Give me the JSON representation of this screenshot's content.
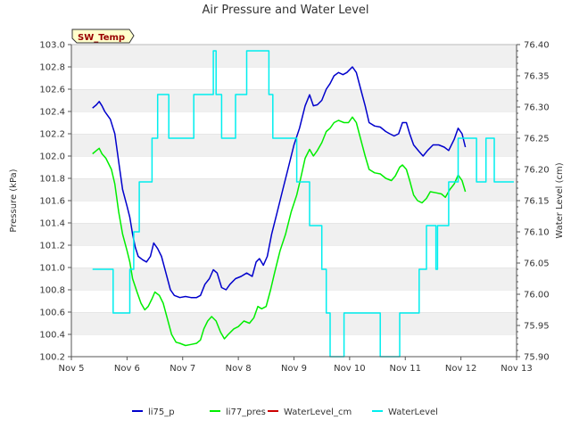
{
  "chart_data": {
    "type": "line",
    "title": "Air Pressure and Water Level",
    "xlabel": "",
    "ylabel": "Pressure (kPa)",
    "y2label": "Water Level (cm)",
    "x_ticks": [
      "Nov 5",
      "Nov 6",
      "Nov 7",
      "Nov 8",
      "Nov 9",
      "Nov 10",
      "Nov 11",
      "Nov 12",
      "Nov 13"
    ],
    "xlim": [
      5,
      13
    ],
    "ylim": [
      100.2,
      103.0
    ],
    "y_ticks": [
      100.2,
      100.4,
      100.6,
      100.8,
      101.0,
      101.2,
      101.4,
      101.6,
      101.8,
      102.0,
      102.2,
      102.4,
      102.6,
      102.8,
      103.0
    ],
    "y2lim": [
      75.9,
      76.4
    ],
    "y2_ticks": [
      75.9,
      75.95,
      76.0,
      76.05,
      76.1,
      76.15,
      76.2,
      76.25,
      76.3,
      76.35,
      76.4
    ],
    "grid": "horizontal bands",
    "legend_position": "bottom",
    "annotation": "SW_Temp",
    "series": [
      {
        "name": "li75_p",
        "color": "#0000cc",
        "axis": "left",
        "points": [
          [
            5.38,
            102.43
          ],
          [
            5.45,
            102.46
          ],
          [
            5.5,
            102.49
          ],
          [
            5.55,
            102.45
          ],
          [
            5.6,
            102.4
          ],
          [
            5.7,
            102.33
          ],
          [
            5.78,
            102.2
          ],
          [
            5.85,
            101.95
          ],
          [
            5.92,
            101.7
          ],
          [
            6.0,
            101.55
          ],
          [
            6.05,
            101.45
          ],
          [
            6.1,
            101.3
          ],
          [
            6.15,
            101.18
          ],
          [
            6.2,
            101.1
          ],
          [
            6.28,
            101.07
          ],
          [
            6.35,
            101.05
          ],
          [
            6.42,
            101.1
          ],
          [
            6.48,
            101.22
          ],
          [
            6.55,
            101.17
          ],
          [
            6.62,
            101.1
          ],
          [
            6.7,
            100.95
          ],
          [
            6.78,
            100.8
          ],
          [
            6.85,
            100.75
          ],
          [
            6.95,
            100.73
          ],
          [
            7.05,
            100.74
          ],
          [
            7.15,
            100.73
          ],
          [
            7.25,
            100.73
          ],
          [
            7.32,
            100.75
          ],
          [
            7.4,
            100.85
          ],
          [
            7.48,
            100.9
          ],
          [
            7.55,
            100.98
          ],
          [
            7.62,
            100.95
          ],
          [
            7.7,
            100.82
          ],
          [
            7.78,
            100.8
          ],
          [
            7.85,
            100.85
          ],
          [
            7.95,
            100.9
          ],
          [
            8.05,
            100.92
          ],
          [
            8.15,
            100.95
          ],
          [
            8.25,
            100.92
          ],
          [
            8.32,
            101.05
          ],
          [
            8.38,
            101.08
          ],
          [
            8.45,
            101.02
          ],
          [
            8.52,
            101.1
          ],
          [
            8.6,
            101.3
          ],
          [
            8.7,
            101.5
          ],
          [
            8.8,
            101.7
          ],
          [
            8.9,
            101.9
          ],
          [
            9.0,
            102.1
          ],
          [
            9.1,
            102.25
          ],
          [
            9.2,
            102.45
          ],
          [
            9.28,
            102.55
          ],
          [
            9.35,
            102.45
          ],
          [
            9.42,
            102.46
          ],
          [
            9.5,
            102.5
          ],
          [
            9.58,
            102.6
          ],
          [
            9.65,
            102.65
          ],
          [
            9.72,
            102.72
          ],
          [
            9.8,
            102.75
          ],
          [
            9.88,
            102.73
          ],
          [
            9.95,
            102.75
          ],
          [
            10.05,
            102.8
          ],
          [
            10.12,
            102.75
          ],
          [
            10.2,
            102.6
          ],
          [
            10.28,
            102.45
          ],
          [
            10.35,
            102.3
          ],
          [
            10.45,
            102.27
          ],
          [
            10.55,
            102.26
          ],
          [
            10.65,
            102.22
          ],
          [
            10.72,
            102.2
          ],
          [
            10.8,
            102.18
          ],
          [
            10.88,
            102.2
          ],
          [
            10.95,
            102.3
          ],
          [
            11.02,
            102.3
          ],
          [
            11.08,
            102.2
          ],
          [
            11.15,
            102.1
          ],
          [
            11.25,
            102.04
          ],
          [
            11.32,
            102.0
          ],
          [
            11.4,
            102.05
          ],
          [
            11.5,
            102.1
          ],
          [
            11.6,
            102.1
          ],
          [
            11.7,
            102.08
          ],
          [
            11.78,
            102.05
          ],
          [
            11.88,
            102.15
          ],
          [
            11.95,
            102.25
          ],
          [
            12.02,
            102.2
          ],
          [
            12.08,
            102.08
          ]
        ]
      },
      {
        "name": "li77_pres",
        "color": "#00ee00",
        "axis": "left",
        "points": [
          [
            5.38,
            102.02
          ],
          [
            5.45,
            102.05
          ],
          [
            5.5,
            102.07
          ],
          [
            5.55,
            102.02
          ],
          [
            5.62,
            101.98
          ],
          [
            5.72,
            101.88
          ],
          [
            5.78,
            101.75
          ],
          [
            5.85,
            101.5
          ],
          [
            5.92,
            101.3
          ],
          [
            6.0,
            101.15
          ],
          [
            6.05,
            101.05
          ],
          [
            6.1,
            100.9
          ],
          [
            6.18,
            100.78
          ],
          [
            6.25,
            100.68
          ],
          [
            6.32,
            100.62
          ],
          [
            6.38,
            100.65
          ],
          [
            6.45,
            100.72
          ],
          [
            6.5,
            100.78
          ],
          [
            6.58,
            100.75
          ],
          [
            6.65,
            100.68
          ],
          [
            6.72,
            100.55
          ],
          [
            6.8,
            100.4
          ],
          [
            6.88,
            100.33
          ],
          [
            6.95,
            100.32
          ],
          [
            7.05,
            100.3
          ],
          [
            7.15,
            100.31
          ],
          [
            7.25,
            100.32
          ],
          [
            7.32,
            100.35
          ],
          [
            7.38,
            100.45
          ],
          [
            7.45,
            100.52
          ],
          [
            7.52,
            100.56
          ],
          [
            7.6,
            100.52
          ],
          [
            7.68,
            100.42
          ],
          [
            7.75,
            100.36
          ],
          [
            7.82,
            100.4
          ],
          [
            7.92,
            100.45
          ],
          [
            8.0,
            100.47
          ],
          [
            8.1,
            100.52
          ],
          [
            8.2,
            100.5
          ],
          [
            8.28,
            100.55
          ],
          [
            8.35,
            100.65
          ],
          [
            8.42,
            100.63
          ],
          [
            8.5,
            100.65
          ],
          [
            8.58,
            100.8
          ],
          [
            8.65,
            100.95
          ],
          [
            8.75,
            101.15
          ],
          [
            8.85,
            101.3
          ],
          [
            8.95,
            101.5
          ],
          [
            9.05,
            101.65
          ],
          [
            9.12,
            101.8
          ],
          [
            9.2,
            101.98
          ],
          [
            9.28,
            102.06
          ],
          [
            9.35,
            102.0
          ],
          [
            9.42,
            102.05
          ],
          [
            9.5,
            102.12
          ],
          [
            9.58,
            102.22
          ],
          [
            9.65,
            102.25
          ],
          [
            9.72,
            102.3
          ],
          [
            9.8,
            102.32
          ],
          [
            9.9,
            102.3
          ],
          [
            9.98,
            102.3
          ],
          [
            10.05,
            102.35
          ],
          [
            10.12,
            102.3
          ],
          [
            10.2,
            102.15
          ],
          [
            10.28,
            102.0
          ],
          [
            10.35,
            101.88
          ],
          [
            10.45,
            101.85
          ],
          [
            10.55,
            101.84
          ],
          [
            10.65,
            101.8
          ],
          [
            10.75,
            101.78
          ],
          [
            10.82,
            101.82
          ],
          [
            10.9,
            101.9
          ],
          [
            10.95,
            101.92
          ],
          [
            11.02,
            101.88
          ],
          [
            11.08,
            101.78
          ],
          [
            11.15,
            101.65
          ],
          [
            11.22,
            101.6
          ],
          [
            11.3,
            101.58
          ],
          [
            11.38,
            101.62
          ],
          [
            11.45,
            101.68
          ],
          [
            11.55,
            101.67
          ],
          [
            11.65,
            101.66
          ],
          [
            11.72,
            101.63
          ],
          [
            11.8,
            101.7
          ],
          [
            11.88,
            101.75
          ],
          [
            11.95,
            101.83
          ],
          [
            12.02,
            101.78
          ],
          [
            12.08,
            101.68
          ]
        ]
      },
      {
        "name": "WaterLevel_cm",
        "color": "#cc0000",
        "axis": "right",
        "points": []
      },
      {
        "name": "WaterLevel",
        "color": "#00eeee",
        "axis": "right",
        "points": [
          [
            5.38,
            76.04
          ],
          [
            5.75,
            76.04
          ],
          [
            5.75,
            75.97
          ],
          [
            6.05,
            75.97
          ],
          [
            6.05,
            76.04
          ],
          [
            6.12,
            76.04
          ],
          [
            6.12,
            76.1
          ],
          [
            6.22,
            76.1
          ],
          [
            6.22,
            76.18
          ],
          [
            6.45,
            76.18
          ],
          [
            6.45,
            76.25
          ],
          [
            6.55,
            76.25
          ],
          [
            6.55,
            76.32
          ],
          [
            6.75,
            76.32
          ],
          [
            6.75,
            76.25
          ],
          [
            7.2,
            76.25
          ],
          [
            7.2,
            76.32
          ],
          [
            7.55,
            76.32
          ],
          [
            7.55,
            76.39
          ],
          [
            7.6,
            76.39
          ],
          [
            7.6,
            76.32
          ],
          [
            7.7,
            76.32
          ],
          [
            7.7,
            76.25
          ],
          [
            7.95,
            76.25
          ],
          [
            7.95,
            76.32
          ],
          [
            8.15,
            76.32
          ],
          [
            8.15,
            76.39
          ],
          [
            8.55,
            76.39
          ],
          [
            8.55,
            76.32
          ],
          [
            8.62,
            76.32
          ],
          [
            8.62,
            76.25
          ],
          [
            9.05,
            76.25
          ],
          [
            9.05,
            76.18
          ],
          [
            9.28,
            76.18
          ],
          [
            9.28,
            76.11
          ],
          [
            9.5,
            76.11
          ],
          [
            9.5,
            76.04
          ],
          [
            9.58,
            76.04
          ],
          [
            9.58,
            75.97
          ],
          [
            9.65,
            75.97
          ],
          [
            9.65,
            75.9
          ],
          [
            9.9,
            75.9
          ],
          [
            9.9,
            75.97
          ],
          [
            10.55,
            75.97
          ],
          [
            10.55,
            75.9
          ],
          [
            10.9,
            75.9
          ],
          [
            10.9,
            75.97
          ],
          [
            11.25,
            75.97
          ],
          [
            11.25,
            76.04
          ],
          [
            11.38,
            76.04
          ],
          [
            11.38,
            76.11
          ],
          [
            11.55,
            76.11
          ],
          [
            11.55,
            76.04
          ],
          [
            11.58,
            76.04
          ],
          [
            11.58,
            76.11
          ],
          [
            11.78,
            76.11
          ],
          [
            11.78,
            76.18
          ],
          [
            11.95,
            76.18
          ],
          [
            11.95,
            76.25
          ],
          [
            12.28,
            76.25
          ],
          [
            12.28,
            76.18
          ],
          [
            12.45,
            76.18
          ],
          [
            12.45,
            76.25
          ],
          [
            12.6,
            76.25
          ],
          [
            12.6,
            76.18
          ],
          [
            12.95,
            76.18
          ]
        ]
      }
    ]
  }
}
